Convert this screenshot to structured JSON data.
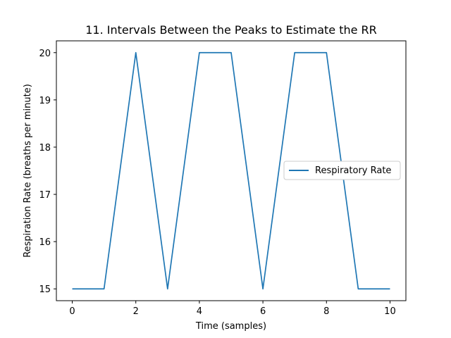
{
  "chart_data": {
    "type": "line",
    "title": "11. Intervals Between the Peaks to Estimate the RR",
    "xlabel": "Time (samples)",
    "ylabel": "Respiration Rate (breaths per minute)",
    "x": [
      0,
      1,
      2,
      3,
      4,
      5,
      6,
      7,
      8,
      9,
      10
    ],
    "series": [
      {
        "name": "Respiratory Rate",
        "color": "#1f77b4",
        "values": [
          15,
          15,
          20,
          15,
          20,
          20,
          15,
          20,
          20,
          15,
          15
        ]
      }
    ],
    "xlim": [
      -0.5,
      10.5
    ],
    "ylim": [
      14.75,
      20.25
    ],
    "xticks": [
      0,
      2,
      4,
      6,
      8,
      10
    ],
    "yticks": [
      15,
      16,
      17,
      18,
      19,
      20
    ],
    "grid": false,
    "legend_position": "center-right"
  }
}
